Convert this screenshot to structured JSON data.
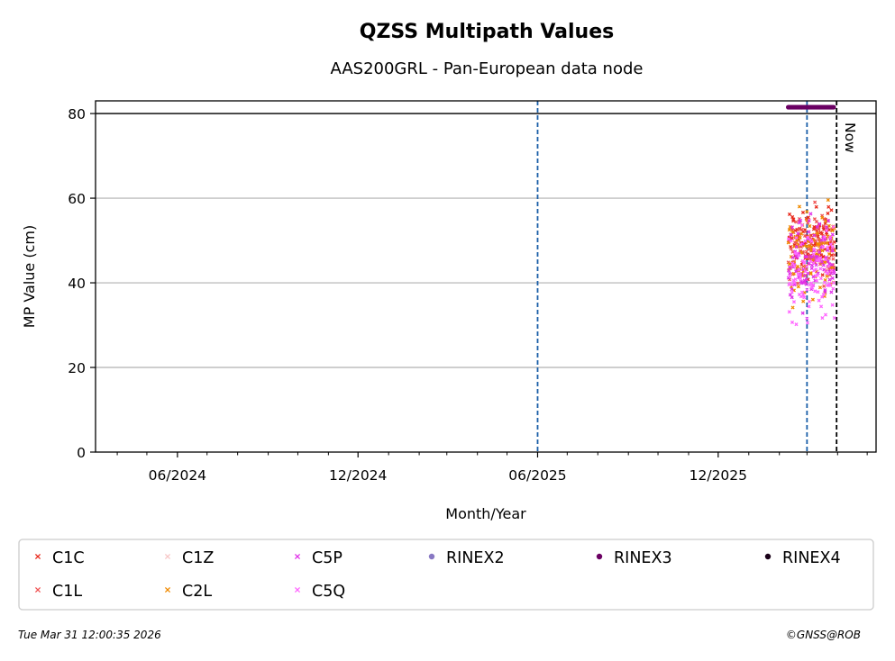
{
  "chart_data": {
    "type": "scatter",
    "title": "QZSS Multipath Values",
    "subtitle": "AAS200GRL - Pan-European data node",
    "xlabel": "Month/Year",
    "ylabel": "MP Value (cm)",
    "ylim": [
      0,
      83
    ],
    "xlim": [
      "2024-03-10",
      "2026-05-10"
    ],
    "yticks": [
      0,
      20,
      40,
      60,
      80
    ],
    "xticks": [
      {
        "date": "2024-06-01",
        "label": "06/2024"
      },
      {
        "date": "2024-12-01",
        "label": "12/2024"
      },
      {
        "date": "2025-06-01",
        "label": "06/2025"
      },
      {
        "date": "2025-12-01",
        "label": "12/2025"
      }
    ],
    "grid": "horizontal",
    "reference_lines": [
      {
        "type": "horizontal",
        "y": 80,
        "color": "#000000",
        "style": "solid"
      },
      {
        "type": "vertical",
        "date": "2025-06-01",
        "color": "#1a5fa8",
        "style": "dashed"
      },
      {
        "type": "vertical",
        "date": "2026-03-01",
        "color": "#1a5fa8",
        "style": "dashed"
      },
      {
        "type": "vertical",
        "date": "2026-03-31",
        "color": "#000000",
        "style": "dashed",
        "label": "Now"
      }
    ],
    "scatter_range": {
      "start": "2026-02-10",
      "end": "2026-03-28"
    },
    "series": [
      {
        "name": "C1C",
        "marker": "x",
        "color": "#e8291c",
        "y_center": 50,
        "spread": 5
      },
      {
        "name": "C1L",
        "marker": "x",
        "color": "#f05555",
        "y_center": 48,
        "spread": 5
      },
      {
        "name": "C1Z",
        "marker": "x",
        "color": "#f7c6c6",
        "y_center": null,
        "spread": 0
      },
      {
        "name": "C2L",
        "marker": "x",
        "color": "#f08a00",
        "y_center": 47,
        "spread": 6
      },
      {
        "name": "C5P",
        "marker": "x",
        "color": "#e030e8",
        "y_center": 45,
        "spread": 6
      },
      {
        "name": "C5Q",
        "marker": "x",
        "color": "#ff66ff",
        "y_center": 42,
        "spread": 7
      },
      {
        "name": "RINEX2",
        "marker": "o",
        "color": "#8878c3",
        "y": null
      },
      {
        "name": "RINEX3",
        "marker": "o",
        "color": "#6b0063",
        "y": 81.5
      },
      {
        "name": "RINEX4",
        "marker": "o",
        "color": "#1a0018",
        "y": null
      }
    ]
  },
  "legend_layout": [
    [
      "C1C",
      "C1Z",
      "C5P",
      "RINEX2",
      "RINEX3",
      "RINEX4"
    ],
    [
      "C1L",
      "C2L",
      "C5Q"
    ]
  ],
  "footer": {
    "timestamp": "Tue Mar 31 12:00:35 2026",
    "credit": "©GNSS@ROB"
  }
}
